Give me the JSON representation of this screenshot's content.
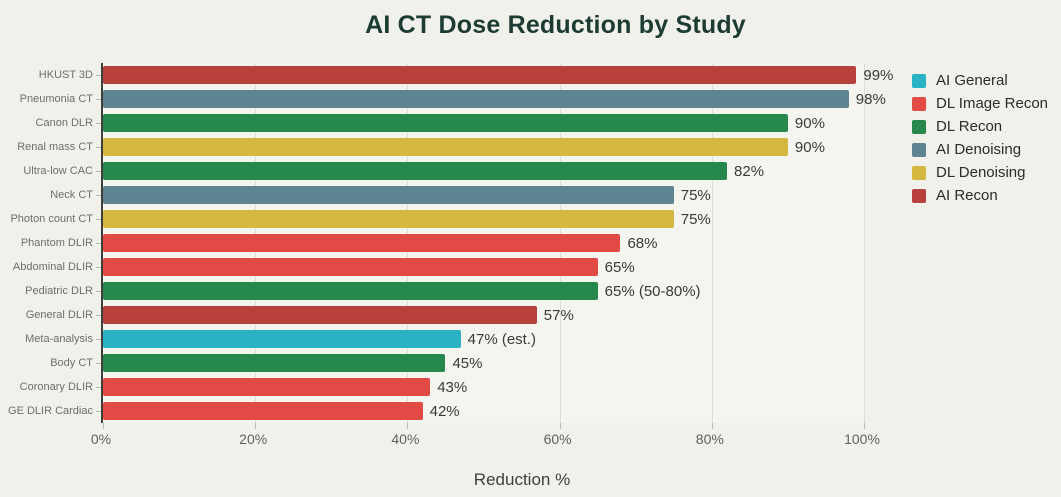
{
  "title": "AI CT Dose Reduction by Study",
  "chart_data": {
    "type": "bar",
    "orientation": "horizontal",
    "title": "AI CT Dose Reduction by Study",
    "xlabel": "Reduction %",
    "ylabel": "",
    "xlim": [
      0,
      100
    ],
    "x_ticks": [
      {
        "value": 0,
        "label": "0%"
      },
      {
        "value": 20,
        "label": "20%"
      },
      {
        "value": 40,
        "label": "40%"
      },
      {
        "value": 60,
        "label": "60%"
      },
      {
        "value": 80,
        "label": "80%"
      },
      {
        "value": 100,
        "label": "100%"
      }
    ],
    "grid": true,
    "legend_position": "right",
    "bars": [
      {
        "category": "HKUST 3D",
        "value": 99,
        "label": "99%",
        "group": "AI Recon"
      },
      {
        "category": "Pneumonia CT",
        "value": 98,
        "label": "98%",
        "group": "AI Denoising"
      },
      {
        "category": "Canon DLR",
        "value": 90,
        "label": "90%",
        "group": "DL Recon"
      },
      {
        "category": "Renal mass CT",
        "value": 90,
        "label": "90%",
        "group": "DL Denoising"
      },
      {
        "category": "Ultra-low CAC",
        "value": 82,
        "label": "82%",
        "group": "DL Recon"
      },
      {
        "category": "Neck CT",
        "value": 75,
        "label": "75%",
        "group": "AI Denoising"
      },
      {
        "category": "Photon count CT",
        "value": 75,
        "label": "75%",
        "group": "DL Denoising"
      },
      {
        "category": "Phantom DLIR",
        "value": 68,
        "label": "68%",
        "group": "DL Image Recon"
      },
      {
        "category": "Abdominal DLIR",
        "value": 65,
        "label": "65%",
        "group": "DL Image Recon"
      },
      {
        "category": "Pediatric DLR",
        "value": 65,
        "label": "65% (50-80%)",
        "group": "DL Recon"
      },
      {
        "category": "General DLIR",
        "value": 57,
        "label": "57%",
        "group": "AI Recon"
      },
      {
        "category": "Meta-analysis",
        "value": 47,
        "label": "47% (est.)",
        "group": "AI General"
      },
      {
        "category": "Body CT",
        "value": 45,
        "label": "45%",
        "group": "DL Recon"
      },
      {
        "category": "Coronary DLIR",
        "value": 43,
        "label": "43%",
        "group": "DL Image Recon"
      },
      {
        "category": "GE DLIR Cardiac",
        "value": 42,
        "label": "42%",
        "group": "DL Image Recon"
      }
    ],
    "legend": [
      {
        "label": "AI General",
        "color": "#29b3c2"
      },
      {
        "label": "DL Image Recon",
        "color": "#e24a46"
      },
      {
        "label": "DL Recon",
        "color": "#27884e"
      },
      {
        "label": "AI Denoising",
        "color": "#5e8391"
      },
      {
        "label": "DL Denoising",
        "color": "#d4b83f"
      },
      {
        "label": "AI Recon",
        "color": "#b8413d"
      }
    ]
  }
}
